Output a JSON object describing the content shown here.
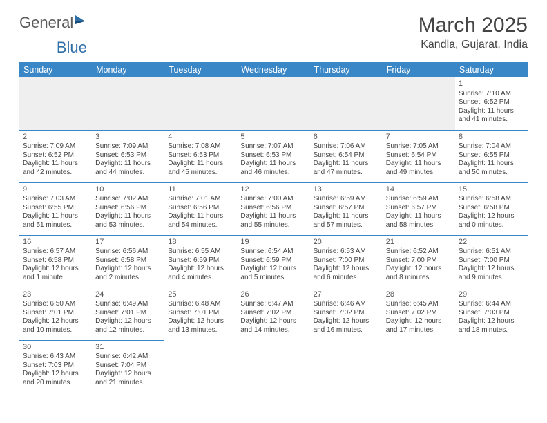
{
  "logo": {
    "text1": "General",
    "text2": "Blue"
  },
  "title": "March 2025",
  "location": "Kandla, Gujarat, India",
  "colors": {
    "header_bg": "#3a87c8",
    "header_fg": "#ffffff",
    "cell_border": "#3a87c8",
    "blank_bg": "#efefef",
    "text": "#444444",
    "logo_gray": "#5a5a5a",
    "logo_blue": "#2f6fa8"
  },
  "weekdays": [
    "Sunday",
    "Monday",
    "Tuesday",
    "Wednesday",
    "Thursday",
    "Friday",
    "Saturday"
  ],
  "weeks": [
    [
      null,
      null,
      null,
      null,
      null,
      null,
      {
        "n": "1",
        "sr": "Sunrise: 7:10 AM",
        "ss": "Sunset: 6:52 PM",
        "dl": "Daylight: 11 hours and 41 minutes."
      }
    ],
    [
      {
        "n": "2",
        "sr": "Sunrise: 7:09 AM",
        "ss": "Sunset: 6:52 PM",
        "dl": "Daylight: 11 hours and 42 minutes."
      },
      {
        "n": "3",
        "sr": "Sunrise: 7:09 AM",
        "ss": "Sunset: 6:53 PM",
        "dl": "Daylight: 11 hours and 44 minutes."
      },
      {
        "n": "4",
        "sr": "Sunrise: 7:08 AM",
        "ss": "Sunset: 6:53 PM",
        "dl": "Daylight: 11 hours and 45 minutes."
      },
      {
        "n": "5",
        "sr": "Sunrise: 7:07 AM",
        "ss": "Sunset: 6:53 PM",
        "dl": "Daylight: 11 hours and 46 minutes."
      },
      {
        "n": "6",
        "sr": "Sunrise: 7:06 AM",
        "ss": "Sunset: 6:54 PM",
        "dl": "Daylight: 11 hours and 47 minutes."
      },
      {
        "n": "7",
        "sr": "Sunrise: 7:05 AM",
        "ss": "Sunset: 6:54 PM",
        "dl": "Daylight: 11 hours and 49 minutes."
      },
      {
        "n": "8",
        "sr": "Sunrise: 7:04 AM",
        "ss": "Sunset: 6:55 PM",
        "dl": "Daylight: 11 hours and 50 minutes."
      }
    ],
    [
      {
        "n": "9",
        "sr": "Sunrise: 7:03 AM",
        "ss": "Sunset: 6:55 PM",
        "dl": "Daylight: 11 hours and 51 minutes."
      },
      {
        "n": "10",
        "sr": "Sunrise: 7:02 AM",
        "ss": "Sunset: 6:56 PM",
        "dl": "Daylight: 11 hours and 53 minutes."
      },
      {
        "n": "11",
        "sr": "Sunrise: 7:01 AM",
        "ss": "Sunset: 6:56 PM",
        "dl": "Daylight: 11 hours and 54 minutes."
      },
      {
        "n": "12",
        "sr": "Sunrise: 7:00 AM",
        "ss": "Sunset: 6:56 PM",
        "dl": "Daylight: 11 hours and 55 minutes."
      },
      {
        "n": "13",
        "sr": "Sunrise: 6:59 AM",
        "ss": "Sunset: 6:57 PM",
        "dl": "Daylight: 11 hours and 57 minutes."
      },
      {
        "n": "14",
        "sr": "Sunrise: 6:59 AM",
        "ss": "Sunset: 6:57 PM",
        "dl": "Daylight: 11 hours and 58 minutes."
      },
      {
        "n": "15",
        "sr": "Sunrise: 6:58 AM",
        "ss": "Sunset: 6:58 PM",
        "dl": "Daylight: 12 hours and 0 minutes."
      }
    ],
    [
      {
        "n": "16",
        "sr": "Sunrise: 6:57 AM",
        "ss": "Sunset: 6:58 PM",
        "dl": "Daylight: 12 hours and 1 minute."
      },
      {
        "n": "17",
        "sr": "Sunrise: 6:56 AM",
        "ss": "Sunset: 6:58 PM",
        "dl": "Daylight: 12 hours and 2 minutes."
      },
      {
        "n": "18",
        "sr": "Sunrise: 6:55 AM",
        "ss": "Sunset: 6:59 PM",
        "dl": "Daylight: 12 hours and 4 minutes."
      },
      {
        "n": "19",
        "sr": "Sunrise: 6:54 AM",
        "ss": "Sunset: 6:59 PM",
        "dl": "Daylight: 12 hours and 5 minutes."
      },
      {
        "n": "20",
        "sr": "Sunrise: 6:53 AM",
        "ss": "Sunset: 7:00 PM",
        "dl": "Daylight: 12 hours and 6 minutes."
      },
      {
        "n": "21",
        "sr": "Sunrise: 6:52 AM",
        "ss": "Sunset: 7:00 PM",
        "dl": "Daylight: 12 hours and 8 minutes."
      },
      {
        "n": "22",
        "sr": "Sunrise: 6:51 AM",
        "ss": "Sunset: 7:00 PM",
        "dl": "Daylight: 12 hours and 9 minutes."
      }
    ],
    [
      {
        "n": "23",
        "sr": "Sunrise: 6:50 AM",
        "ss": "Sunset: 7:01 PM",
        "dl": "Daylight: 12 hours and 10 minutes."
      },
      {
        "n": "24",
        "sr": "Sunrise: 6:49 AM",
        "ss": "Sunset: 7:01 PM",
        "dl": "Daylight: 12 hours and 12 minutes."
      },
      {
        "n": "25",
        "sr": "Sunrise: 6:48 AM",
        "ss": "Sunset: 7:01 PM",
        "dl": "Daylight: 12 hours and 13 minutes."
      },
      {
        "n": "26",
        "sr": "Sunrise: 6:47 AM",
        "ss": "Sunset: 7:02 PM",
        "dl": "Daylight: 12 hours and 14 minutes."
      },
      {
        "n": "27",
        "sr": "Sunrise: 6:46 AM",
        "ss": "Sunset: 7:02 PM",
        "dl": "Daylight: 12 hours and 16 minutes."
      },
      {
        "n": "28",
        "sr": "Sunrise: 6:45 AM",
        "ss": "Sunset: 7:02 PM",
        "dl": "Daylight: 12 hours and 17 minutes."
      },
      {
        "n": "29",
        "sr": "Sunrise: 6:44 AM",
        "ss": "Sunset: 7:03 PM",
        "dl": "Daylight: 12 hours and 18 minutes."
      }
    ],
    [
      {
        "n": "30",
        "sr": "Sunrise: 6:43 AM",
        "ss": "Sunset: 7:03 PM",
        "dl": "Daylight: 12 hours and 20 minutes."
      },
      {
        "n": "31",
        "sr": "Sunrise: 6:42 AM",
        "ss": "Sunset: 7:04 PM",
        "dl": "Daylight: 12 hours and 21 minutes."
      },
      null,
      null,
      null,
      null,
      null
    ]
  ]
}
